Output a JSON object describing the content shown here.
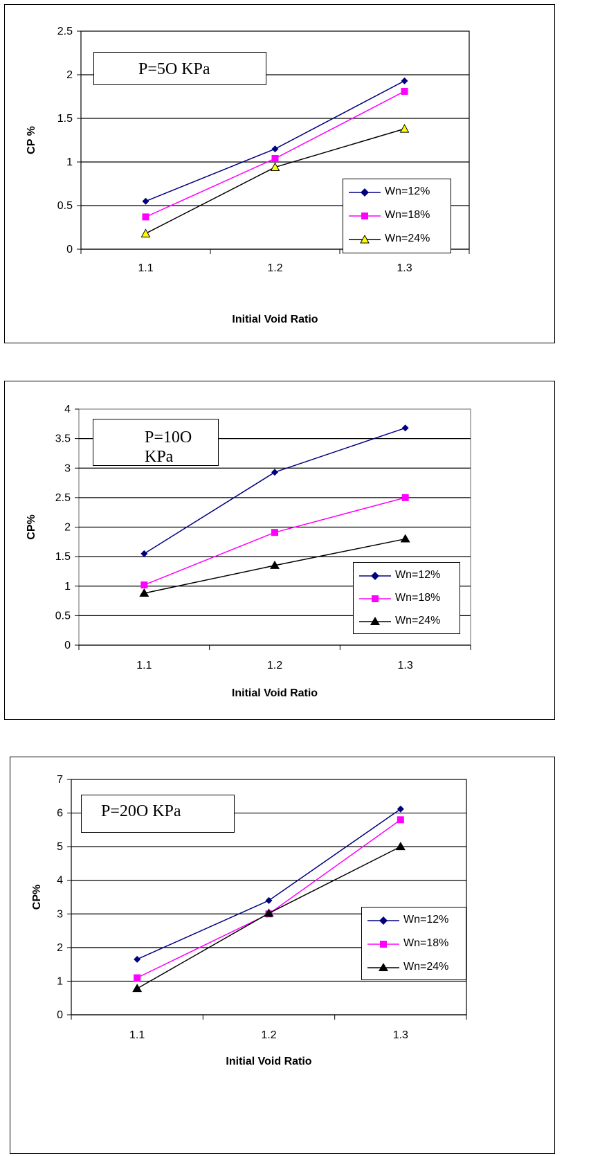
{
  "chart_data": [
    {
      "type": "line",
      "annotation": "P=5O KPa",
      "x": [
        1.1,
        1.2,
        1.3
      ],
      "x_tick_labels": [
        "1.1",
        "1.2",
        "1.3"
      ],
      "xlabel": "Initial Void Ratio",
      "ylabel": "CP %",
      "ylim": [
        0,
        2.5
      ],
      "y_tick_labels": [
        "0",
        "0.5",
        "1",
        "1.5",
        "2",
        "2.5"
      ],
      "grid": "horizontal",
      "legend": "right",
      "series": [
        {
          "name": "Wn=12%",
          "values": [
            0.55,
            1.15,
            1.93
          ],
          "color": "#000080",
          "marker": "diamond"
        },
        {
          "name": "Wn=18%",
          "values": [
            0.37,
            1.04,
            1.81
          ],
          "color": "#ff00ff",
          "marker": "square"
        },
        {
          "name": "Wn=24%",
          "values": [
            0.18,
            0.94,
            1.38
          ],
          "color": "#000000",
          "marker": "triangle-yellow"
        }
      ]
    },
    {
      "type": "line",
      "annotation": "P=10O KPa",
      "x": [
        1.1,
        1.2,
        1.3
      ],
      "x_tick_labels": [
        "1.1",
        "1.2",
        "1.3"
      ],
      "xlabel": "Initial Void Ratio",
      "ylabel": "CP%",
      "ylim": [
        0,
        4
      ],
      "y_tick_labels": [
        "0",
        "0.5",
        "1",
        "1.5",
        "2",
        "2.5",
        "3",
        "3.5",
        "4"
      ],
      "grid": "horizontal",
      "legend": "right",
      "series": [
        {
          "name": "Wn=12%",
          "values": [
            1.55,
            2.93,
            3.68
          ],
          "color": "#000080",
          "marker": "diamond"
        },
        {
          "name": "Wn=18%",
          "values": [
            1.02,
            1.91,
            2.5
          ],
          "color": "#ff00ff",
          "marker": "square"
        },
        {
          "name": "Wn=24%",
          "values": [
            0.88,
            1.35,
            1.8
          ],
          "color": "#000000",
          "marker": "triangle"
        }
      ]
    },
    {
      "type": "line",
      "annotation": "P=20O KPa",
      "x": [
        1.1,
        1.2,
        1.3
      ],
      "x_tick_labels": [
        "1.1",
        "1.2",
        "1.3"
      ],
      "xlabel": "Initial Void Ratio",
      "ylabel": "CP%",
      "ylim": [
        0,
        7
      ],
      "y_tick_labels": [
        "0",
        "1",
        "2",
        "3",
        "4",
        "5",
        "6",
        "7"
      ],
      "grid": "horizontal",
      "legend": "right",
      "series": [
        {
          "name": "Wn=12%",
          "values": [
            1.65,
            3.4,
            6.12
          ],
          "color": "#000080",
          "marker": "diamond"
        },
        {
          "name": "Wn=18%",
          "values": [
            1.1,
            3.0,
            5.8
          ],
          "color": "#ff00ff",
          "marker": "square"
        },
        {
          "name": "Wn=24%",
          "values": [
            0.78,
            3.02,
            5.0
          ],
          "color": "#000000",
          "marker": "triangle"
        }
      ]
    }
  ]
}
